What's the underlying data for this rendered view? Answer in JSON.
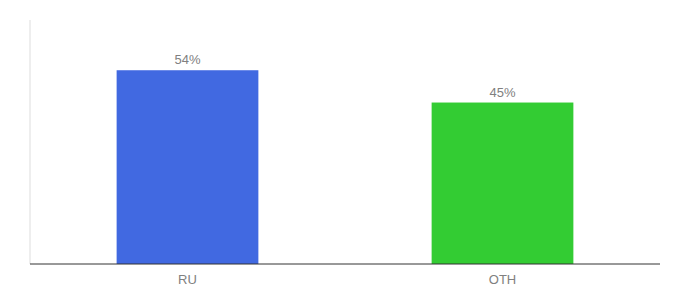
{
  "chart_data": {
    "type": "bar",
    "categories": [
      "RU",
      "OTH"
    ],
    "values": [
      54,
      45
    ],
    "value_labels": [
      "54%",
      "45%"
    ],
    "colors": [
      "#4169e1",
      "#33cc33"
    ],
    "ylim": [
      0,
      68
    ],
    "data_labels": true,
    "tick_labels": "x",
    "grid": false
  }
}
